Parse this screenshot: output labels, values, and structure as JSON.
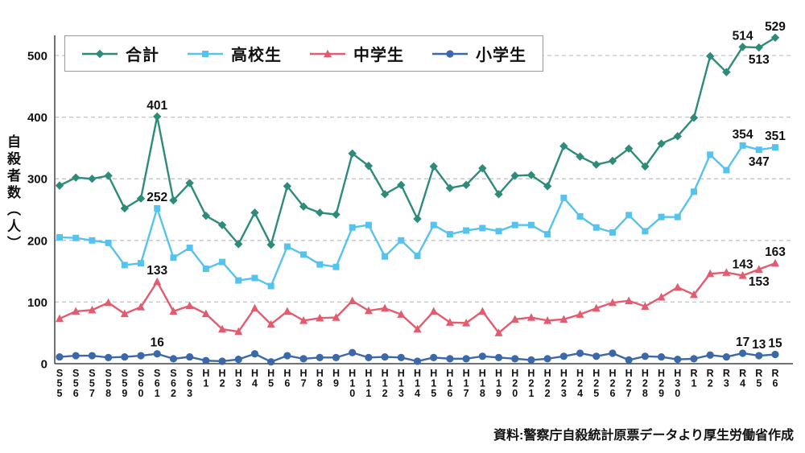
{
  "source_note": "資料:警察庁自殺統計原票データより厚生労働省作成",
  "chart_data": {
    "type": "line",
    "title": "",
    "xlabel": "",
    "ylabel": "自殺者数(人)",
    "ylim": [
      0,
      550
    ],
    "yticks": [
      0,
      100,
      200,
      300,
      400,
      500
    ],
    "grid": "horizontal-dashed",
    "legend_position": "top-left-inside",
    "categories": [
      "S55",
      "S56",
      "S57",
      "S58",
      "S59",
      "S60",
      "S61",
      "S62",
      "S63",
      "H1",
      "H2",
      "H3",
      "H4",
      "H5",
      "H6",
      "H7",
      "H8",
      "H9",
      "H10",
      "H11",
      "H12",
      "H13",
      "H14",
      "H15",
      "H16",
      "H17",
      "H18",
      "H19",
      "H20",
      "H21",
      "H22",
      "H23",
      "H24",
      "H25",
      "H26",
      "H27",
      "H28",
      "H29",
      "H30",
      "R1",
      "R2",
      "R3",
      "R4",
      "R5",
      "R6"
    ],
    "series": [
      {
        "name": "合計",
        "key": "total",
        "marker": "diamond",
        "color": "#2e8b7a",
        "values": [
          289,
          302,
          300,
          305,
          252,
          268,
          401,
          265,
          293,
          240,
          225,
          194,
          245,
          193,
          288,
          255,
          245,
          242,
          341,
          321,
          275,
          290,
          235,
          320,
          285,
          290,
          317,
          275,
          305,
          306,
          288,
          353,
          336,
          323,
          329,
          349,
          320,
          357,
          369,
          399,
          499,
          473,
          514,
          513,
          529
        ]
      },
      {
        "name": "高校生",
        "key": "highschool",
        "marker": "square",
        "color": "#56c3ef",
        "values": [
          205,
          204,
          200,
          196,
          160,
          163,
          252,
          172,
          188,
          154,
          165,
          135,
          139,
          126,
          190,
          177,
          161,
          157,
          221,
          225,
          174,
          200,
          175,
          225,
          210,
          216,
          220,
          215,
          225,
          225,
          210,
          269,
          239,
          221,
          213,
          241,
          215,
          238,
          238,
          279,
          339,
          314,
          354,
          347,
          351
        ]
      },
      {
        "name": "中学生",
        "key": "middleschool",
        "marker": "triangle",
        "color": "#e25b6e",
        "values": [
          73,
          85,
          87,
          99,
          81,
          92,
          133,
          85,
          94,
          81,
          56,
          52,
          90,
          64,
          85,
          70,
          74,
          75,
          102,
          86,
          90,
          80,
          56,
          85,
          67,
          66,
          85,
          50,
          72,
          75,
          70,
          72,
          80,
          90,
          99,
          102,
          93,
          108,
          124,
          112,
          146,
          148,
          143,
          153,
          163
        ]
      },
      {
        "name": "小学生",
        "key": "elementary",
        "marker": "circle",
        "color": "#3a68a8",
        "values": [
          11,
          13,
          13,
          10,
          11,
          13,
          16,
          8,
          11,
          5,
          4,
          7,
          16,
          3,
          13,
          8,
          10,
          10,
          18,
          10,
          11,
          10,
          4,
          10,
          8,
          8,
          12,
          10,
          8,
          6,
          8,
          12,
          17,
          12,
          17,
          6,
          12,
          11,
          7,
          8,
          14,
          11,
          17,
          13,
          15
        ]
      }
    ],
    "annotations": [
      {
        "series": 0,
        "category": "S61",
        "text": "401",
        "position": "above"
      },
      {
        "series": 1,
        "category": "S61",
        "text": "252",
        "position": "above"
      },
      {
        "series": 2,
        "category": "S61",
        "text": "133",
        "position": "above"
      },
      {
        "series": 3,
        "category": "S61",
        "text": "16",
        "position": "above"
      },
      {
        "series": 0,
        "category": "R4",
        "text": "514",
        "position": "above"
      },
      {
        "series": 0,
        "category": "R5",
        "text": "513",
        "position": "below"
      },
      {
        "series": 0,
        "category": "R6",
        "text": "529",
        "position": "above"
      },
      {
        "series": 1,
        "category": "R4",
        "text": "354",
        "position": "above"
      },
      {
        "series": 1,
        "category": "R5",
        "text": "347",
        "position": "below"
      },
      {
        "series": 1,
        "category": "R6",
        "text": "351",
        "position": "above"
      },
      {
        "series": 2,
        "category": "R4",
        "text": "143",
        "position": "above"
      },
      {
        "series": 2,
        "category": "R5",
        "text": "153",
        "position": "below"
      },
      {
        "series": 2,
        "category": "R6",
        "text": "163",
        "position": "above"
      },
      {
        "series": 3,
        "category": "R4",
        "text": "17",
        "position": "above"
      },
      {
        "series": 3,
        "category": "R5",
        "text": "13",
        "position": "above"
      },
      {
        "series": 3,
        "category": "R6",
        "text": "15",
        "position": "above"
      }
    ]
  }
}
